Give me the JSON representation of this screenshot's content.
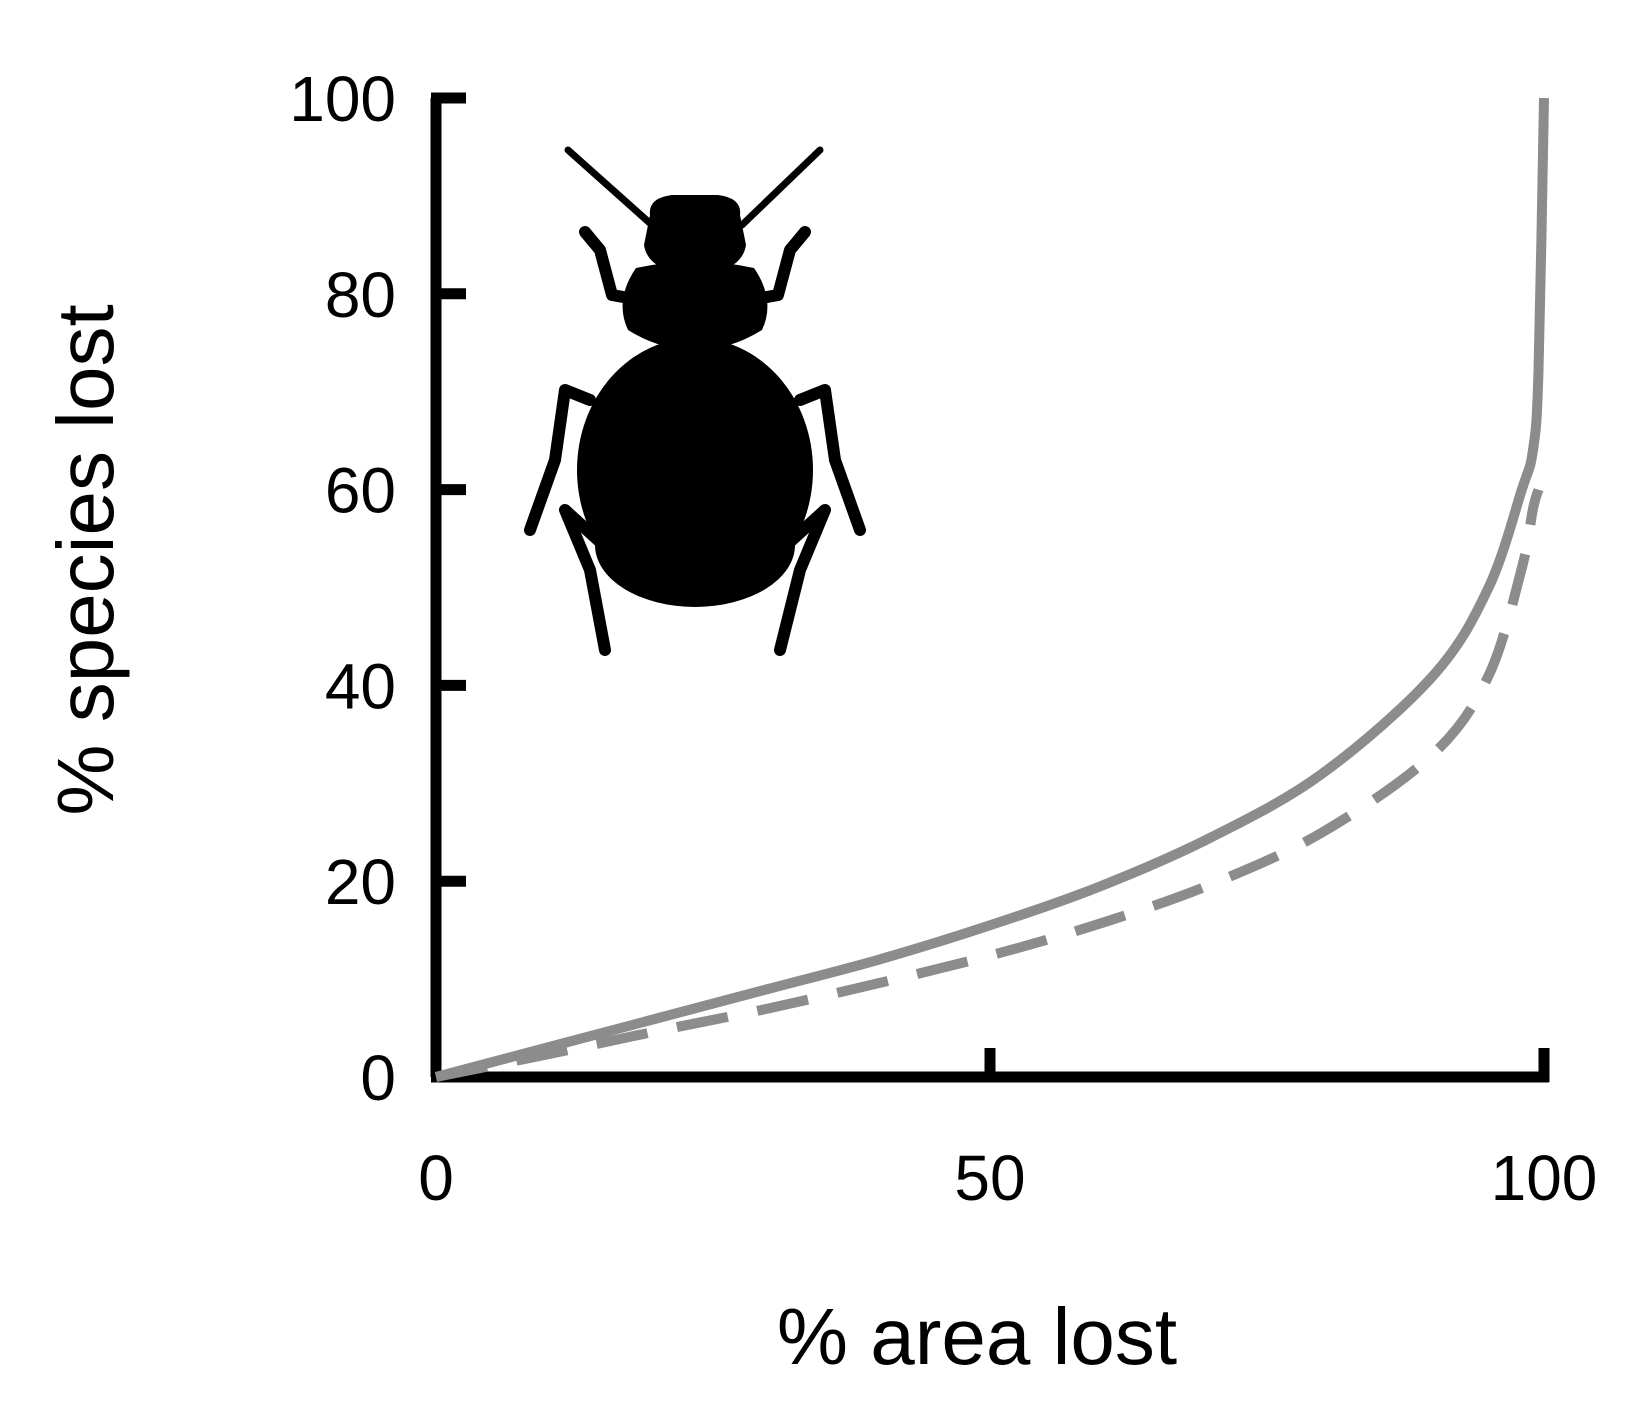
{
  "chart_data": {
    "type": "line",
    "title": "",
    "xlabel": "% area lost",
    "ylabel": "% species lost",
    "xlim": [
      0,
      100
    ],
    "ylim": [
      0,
      100
    ],
    "x_ticks": [
      "0",
      "50",
      "100"
    ],
    "y_ticks": [
      "0",
      "20",
      "40",
      "60",
      "80",
      "100"
    ],
    "grid": false,
    "legend": "none",
    "icon": "beetle-silhouette-icon",
    "series": [
      {
        "style": "solid",
        "color": "#8c8c8c",
        "x": [
          0,
          10,
          20,
          30,
          40,
          50,
          60,
          70,
          80,
          90,
          95,
          98,
          99,
          99.5,
          100
        ],
        "y": [
          0,
          3,
          6,
          9,
          12,
          15.5,
          19.5,
          24.5,
          31,
          41,
          50,
          60,
          64,
          72,
          100
        ]
      },
      {
        "style": "dashed",
        "color": "#8c8c8c",
        "x": [
          0,
          10,
          20,
          30,
          40,
          50,
          60,
          70,
          80,
          90,
          95,
          98,
          99,
          99.5
        ],
        "y": [
          0,
          2.3,
          4.7,
          7,
          9.6,
          12.4,
          15.7,
          19.7,
          25,
          33,
          41,
          52,
          58,
          60
        ]
      }
    ]
  }
}
